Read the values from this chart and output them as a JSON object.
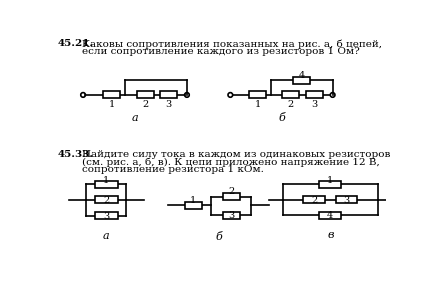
{
  "bg_color": "#ffffff",
  "text_color": "#000000",
  "line_color": "#000000",
  "resistor_fill": "#ffffff",
  "resistor_edge": "#000000",
  "t4521_bold": "45.21.",
  "t4521_l1": "Каковы сопротивления показанных на рис. а, б цепей,",
  "t4521_l2": "если сопротивление каждого из резисторов 1 Ом?",
  "t4533_bold": "45.33.",
  "t4533_l1": "Найдите силу тока в каждом из одинаковых резисторов",
  "t4533_l2": "(см. рис. а, б, в). К цепи приложено напряжение 12 В,",
  "t4533_l3": "сопротивление резистора 1 кОм."
}
